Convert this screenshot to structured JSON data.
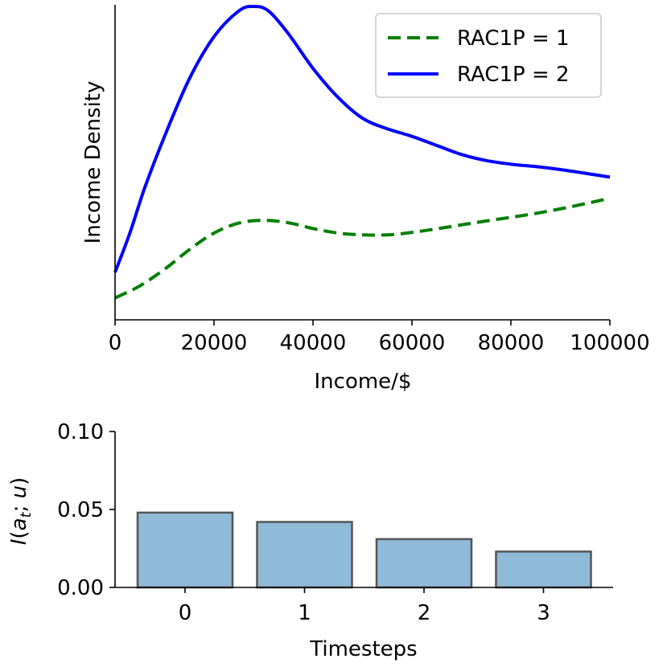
{
  "chart_data": [
    {
      "type": "line",
      "title": "",
      "xlabel": "Income/$",
      "ylabel": "Income Density",
      "xlim": [
        0,
        100000
      ],
      "xticks": [
        "0",
        "20000",
        "40000",
        "60000",
        "80000",
        "100000"
      ],
      "yticks_shown": false,
      "grid": false,
      "legend_position": "top-right",
      "series": [
        {
          "name": "RAC1P = 1",
          "color": "#007f00",
          "line_style": "dashed",
          "x": [
            0,
            5000,
            10000,
            15000,
            20000,
            25000,
            30000,
            35000,
            40000,
            45000,
            50000,
            55000,
            60000,
            65000,
            70000,
            75000,
            80000,
            85000,
            90000,
            95000,
            100000
          ],
          "values": [
            0.035,
            0.075,
            0.13,
            0.195,
            0.25,
            0.283,
            0.292,
            0.284,
            0.265,
            0.25,
            0.244,
            0.244,
            0.252,
            0.264,
            0.277,
            0.29,
            0.302,
            0.315,
            0.33,
            0.347,
            0.365
          ]
        },
        {
          "name": "RAC1P = 2",
          "color": "#0000ff",
          "line_style": "solid",
          "x": [
            0,
            3000,
            6000,
            10000,
            15000,
            20000,
            25000,
            28000,
            31000,
            35000,
            40000,
            45000,
            50000,
            55000,
            60000,
            65000,
            70000,
            75000,
            80000,
            85000,
            90000,
            95000,
            100000
          ],
          "values": [
            0.12,
            0.25,
            0.4,
            0.57,
            0.76,
            0.9,
            0.985,
            1.0,
            0.985,
            0.91,
            0.795,
            0.7,
            0.63,
            0.595,
            0.57,
            0.54,
            0.51,
            0.49,
            0.478,
            0.47,
            0.46,
            0.448,
            0.435
          ]
        }
      ]
    },
    {
      "type": "bar",
      "title": "",
      "xlabel": "Timesteps",
      "ylabel": "I(a_t; u)",
      "categories": [
        "0",
        "1",
        "2",
        "3"
      ],
      "values": [
        0.048,
        0.042,
        0.031,
        0.023
      ],
      "ylim": [
        0,
        0.1
      ],
      "yticks": [
        "0.00",
        "0.05",
        "0.10"
      ],
      "bar_color": "#8fbad8",
      "edge_color": "#555555",
      "grid": false
    }
  ]
}
